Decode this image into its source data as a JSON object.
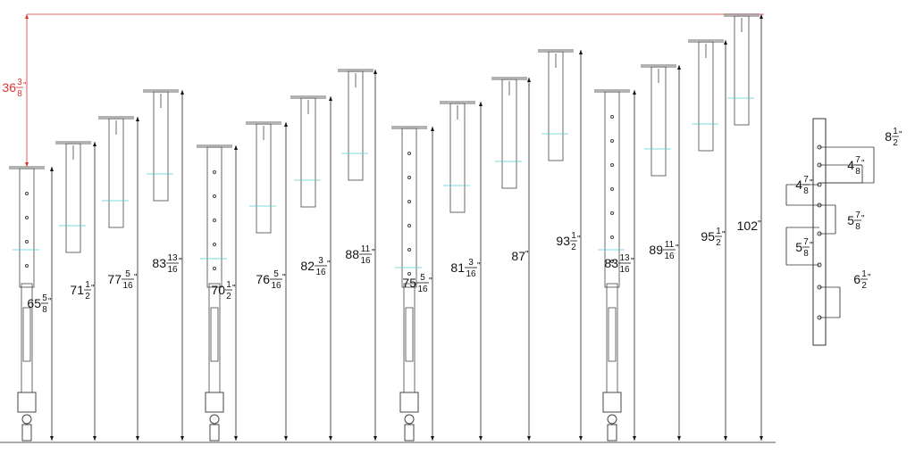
{
  "red_dimension": {
    "whole": "36",
    "num": "3",
    "den": "8",
    "mark": "\""
  },
  "dimensions": [
    {
      "whole": "65",
      "num": "5",
      "den": "8",
      "mark": "\""
    },
    {
      "whole": "71",
      "num": "1",
      "den": "2",
      "mark": "\""
    },
    {
      "whole": "77",
      "num": "5",
      "den": "16",
      "mark": "\""
    },
    {
      "whole": "83",
      "num": "13",
      "den": "16",
      "mark": "\""
    },
    {
      "whole": "70",
      "num": "1",
      "den": "2",
      "mark": "\""
    },
    {
      "whole": "76",
      "num": "5",
      "den": "16",
      "mark": "\""
    },
    {
      "whole": "82",
      "num": "3",
      "den": "16",
      "mark": "\""
    },
    {
      "whole": "88",
      "num": "11",
      "den": "16",
      "mark": "\""
    },
    {
      "whole": "75",
      "num": "5",
      "den": "16",
      "mark": "\""
    },
    {
      "whole": "81",
      "num": "3",
      "den": "16",
      "mark": "\""
    },
    {
      "whole": "87",
      "mark": "\""
    },
    {
      "whole": "93",
      "num": "1",
      "den": "2",
      "mark": "\""
    },
    {
      "whole": "83",
      "num": "13",
      "den": "16",
      "mark": "\""
    },
    {
      "whole": "89",
      "num": "11",
      "den": "16",
      "mark": "\""
    },
    {
      "whole": "95",
      "num": "1",
      "den": "2",
      "mark": "\""
    },
    {
      "whole": "102",
      "mark": "\""
    }
  ],
  "detail_dimensions": [
    {
      "whole": "8",
      "num": "1",
      "den": "2",
      "mark": "\""
    },
    {
      "whole": "4",
      "num": "7",
      "den": "8",
      "mark": "\""
    },
    {
      "whole": "4",
      "num": "7",
      "den": "8",
      "mark": "\""
    },
    {
      "whole": "5",
      "num": "7",
      "den": "8",
      "mark": "\""
    },
    {
      "whole": "5",
      "num": "7",
      "den": "8",
      "mark": "\""
    },
    {
      "whole": "6",
      "num": "1",
      "den": "2",
      "mark": "\""
    }
  ]
}
